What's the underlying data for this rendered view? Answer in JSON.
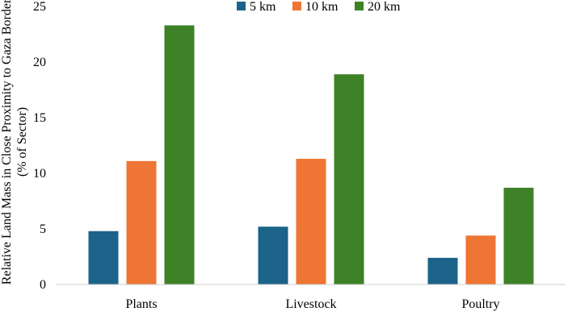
{
  "chart_data": {
    "type": "bar",
    "title": "",
    "xlabel": "",
    "ylabel_line1": "Relative Land Mass in Close Proximity to Gaza Border",
    "ylabel_line2": "(% of Sector)",
    "categories": [
      "Plants",
      "Livestock",
      "Poultry"
    ],
    "series": [
      {
        "name": "5 km",
        "color": "#1b6389",
        "values": [
          4.8,
          5.2,
          2.4
        ]
      },
      {
        "name": "10 km",
        "color": "#ee7533",
        "values": [
          11.1,
          11.3,
          4.4
        ]
      },
      {
        "name": "20 km",
        "color": "#3e8227",
        "values": [
          23.3,
          18.9,
          8.7
        ]
      }
    ],
    "ylim": [
      0,
      25
    ],
    "yticks": [
      "0",
      "5",
      "10",
      "15",
      "20",
      "25"
    ],
    "grid": false,
    "legend_position": "top"
  }
}
